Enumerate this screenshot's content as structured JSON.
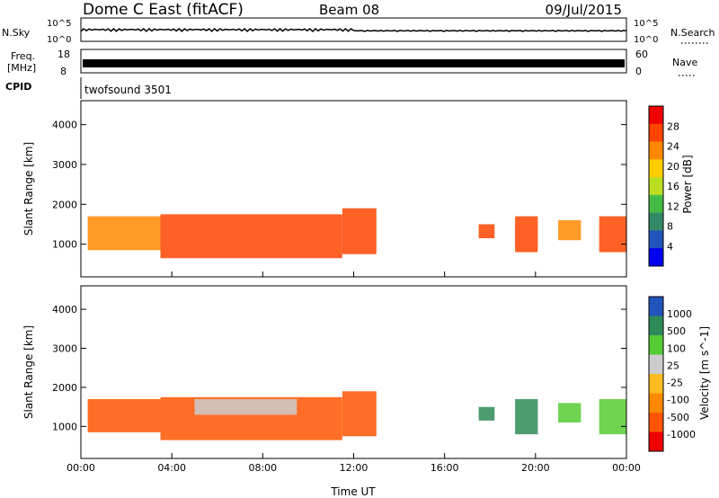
{
  "header": {
    "radar": "Dome C East (fitACF)",
    "beam": "Beam 08",
    "date": "09/Jul/2015"
  },
  "top_panels": {
    "nsky_label": "N.Sky",
    "nsky_ticks": [
      "10^5",
      "10^0"
    ],
    "nsearch_label": "N.Search",
    "nsearch_ticks": [
      "10^5",
      "10^0"
    ],
    "freq_label_line1": "Freq.",
    "freq_label_line2": "[MHz]",
    "freq_ticks": [
      "18",
      "8"
    ],
    "nave_label": "Nave",
    "nave_ticks": [
      "60",
      "0"
    ],
    "cpid_label": "CPID",
    "cpid_value": "twofsound 3501"
  },
  "colors": {
    "power": [
      "#0000ee",
      "#2255bb",
      "#338866",
      "#44bb44",
      "#bbdd22",
      "#ffcc00",
      "#ff8800",
      "#ff4400",
      "#ee0000"
    ],
    "velocity": [
      "#ee0000",
      "#ff5500",
      "#ff8800",
      "#ffbb22",
      "#cccccc",
      "#55cc33",
      "#2e8b57",
      "#2255bb"
    ]
  },
  "chart_data": [
    {
      "type": "heatmap",
      "name": "power",
      "xlabel": "Time UT",
      "ylabel": "Slant Range [km]",
      "x_ticks": [
        "00:00",
        "04:00",
        "08:00",
        "12:00",
        "16:00",
        "20:00",
        "00:00"
      ],
      "xlim_hours": [
        0,
        24
      ],
      "y_ticks": [
        "1000",
        "2000",
        "3000",
        "4000"
      ],
      "ylim_km": [
        180,
        4600
      ],
      "colorbar_label": "Power [dB]",
      "colorbar_ticks": [
        "4",
        "8",
        "12",
        "16",
        "20",
        "24",
        "28"
      ],
      "colorbar_range": [
        0,
        32
      ],
      "echo_regions": [
        {
          "t_start": 0.3,
          "t_end": 3.5,
          "r_low": 850,
          "r_high": 1700,
          "value": 24
        },
        {
          "t_start": 3.5,
          "t_end": 11.5,
          "r_low": 650,
          "r_high": 1750,
          "value": 27
        },
        {
          "t_start": 11.5,
          "t_end": 13.0,
          "r_low": 750,
          "r_high": 1900,
          "value": 25
        },
        {
          "t_start": 17.5,
          "t_end": 18.2,
          "r_low": 1150,
          "r_high": 1500,
          "value": 26
        },
        {
          "t_start": 19.1,
          "t_end": 20.1,
          "r_low": 800,
          "r_high": 1700,
          "value": 26
        },
        {
          "t_start": 21.0,
          "t_end": 22.0,
          "r_low": 1100,
          "r_high": 1600,
          "value": 24
        },
        {
          "t_start": 22.8,
          "t_end": 24.0,
          "r_low": 800,
          "r_high": 1700,
          "value": 26
        }
      ]
    },
    {
      "type": "heatmap",
      "name": "velocity",
      "xlabel": "Time UT",
      "ylabel": "Slant Range [km]",
      "x_ticks": [
        "00:00",
        "04:00",
        "08:00",
        "12:00",
        "16:00",
        "20:00",
        "00:00"
      ],
      "xlim_hours": [
        0,
        24
      ],
      "y_ticks": [
        "1000",
        "2000",
        "3000",
        "4000"
      ],
      "ylim_km": [
        180,
        4600
      ],
      "colorbar_label": "Velocity [m s^-1]",
      "colorbar_ticks": [
        "1000",
        "500",
        "100",
        "25",
        "-25",
        "-100",
        "-500",
        "-1000"
      ],
      "echo_regions": [
        {
          "t_start": 0.3,
          "t_end": 3.5,
          "r_low": 850,
          "r_high": 1700,
          "value": -100
        },
        {
          "t_start": 3.5,
          "t_end": 11.5,
          "r_low": 650,
          "r_high": 1750,
          "value": -100
        },
        {
          "t_start": 5.0,
          "t_end": 9.5,
          "r_low": 1300,
          "r_high": 1700,
          "value": 0
        },
        {
          "t_start": 11.5,
          "t_end": 13.0,
          "r_low": 750,
          "r_high": 1900,
          "value": -100
        },
        {
          "t_start": 17.5,
          "t_end": 18.2,
          "r_low": 1150,
          "r_high": 1500,
          "value": 300
        },
        {
          "t_start": 19.1,
          "t_end": 20.1,
          "r_low": 800,
          "r_high": 1700,
          "value": 200
        },
        {
          "t_start": 21.0,
          "t_end": 22.0,
          "r_low": 1100,
          "r_high": 1600,
          "value": 100
        },
        {
          "t_start": 22.8,
          "t_end": 24.0,
          "r_low": 800,
          "r_high": 1700,
          "value": 50
        }
      ]
    }
  ]
}
